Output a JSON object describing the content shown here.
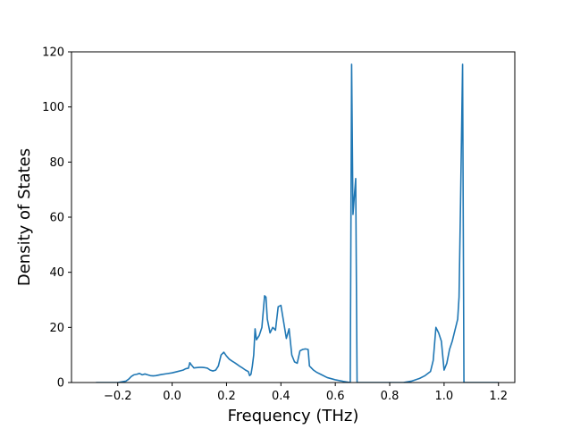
{
  "chart_data": {
    "type": "line",
    "title": "",
    "xlabel": "Frequency (THz)",
    "ylabel": "Density of States",
    "xlim": [
      -0.37,
      1.26
    ],
    "ylim": [
      0,
      120
    ],
    "xticks": [
      -0.2,
      0.0,
      0.2,
      0.4,
      0.6,
      0.8,
      1.0,
      1.2
    ],
    "xtick_labels": [
      "−0.2",
      "0.0",
      "0.2",
      "0.4",
      "0.6",
      "0.8",
      "1.0",
      "1.2"
    ],
    "yticks": [
      0,
      20,
      40,
      60,
      80,
      100,
      120
    ],
    "ytick_labels": [
      "0",
      "20",
      "40",
      "60",
      "80",
      "100",
      "120"
    ],
    "grid": false,
    "line_color": "#1f77b4",
    "series": [
      {
        "x": [
          -0.28,
          -0.2,
          -0.17,
          -0.16,
          -0.15,
          -0.14,
          -0.13,
          -0.12,
          -0.11,
          -0.1,
          -0.09,
          -0.08,
          -0.07,
          -0.06,
          -0.05,
          -0.04,
          -0.02,
          0.0,
          0.02,
          0.04,
          0.05,
          0.06,
          0.065,
          0.07,
          0.08,
          0.09,
          0.1,
          0.11,
          0.12,
          0.13,
          0.14,
          0.15,
          0.16,
          0.17,
          0.18,
          0.19,
          0.2,
          0.21,
          0.22,
          0.23,
          0.24,
          0.25,
          0.26,
          0.27,
          0.28,
          0.285,
          0.29,
          0.295,
          0.3,
          0.305,
          0.31,
          0.32,
          0.33,
          0.34,
          0.345,
          0.35,
          0.36,
          0.37,
          0.38,
          0.39,
          0.4,
          0.41,
          0.42,
          0.43,
          0.44,
          0.45,
          0.46,
          0.47,
          0.48,
          0.49,
          0.5,
          0.505,
          0.51,
          0.52,
          0.53,
          0.55,
          0.57,
          0.6,
          0.63,
          0.655,
          0.66,
          0.665,
          0.675,
          0.68,
          0.69,
          0.7,
          0.75,
          0.8,
          0.85,
          0.88,
          0.91,
          0.93,
          0.95,
          0.96,
          0.97,
          0.98,
          0.99,
          1.0,
          1.01,
          1.02,
          1.03,
          1.04,
          1.05,
          1.055,
          1.06,
          1.068,
          1.073,
          1.08,
          1.1,
          1.15,
          1.2
        ],
        "y": [
          0,
          0,
          0.5,
          1.2,
          2.2,
          2.8,
          3.0,
          3.3,
          2.8,
          3.1,
          2.8,
          2.5,
          2.4,
          2.5,
          2.7,
          2.9,
          3.2,
          3.5,
          4.0,
          4.5,
          5.0,
          5.2,
          7.2,
          6.5,
          5.3,
          5.4,
          5.5,
          5.5,
          5.4,
          5.2,
          4.5,
          4.2,
          4.5,
          6.0,
          10.0,
          11.0,
          9.6,
          8.5,
          7.8,
          7.2,
          6.5,
          5.8,
          5.2,
          4.5,
          4.0,
          2.5,
          3.0,
          6.0,
          10.0,
          19.5,
          15.5,
          17.0,
          20.0,
          31.5,
          31.0,
          23.0,
          18.0,
          20.0,
          19.0,
          27.5,
          28.0,
          22.0,
          16.0,
          19.5,
          10.0,
          7.5,
          7.0,
          11.5,
          12.0,
          12.2,
          12.0,
          6.0,
          5.5,
          4.5,
          3.8,
          2.8,
          1.8,
          1.0,
          0.4,
          0.0,
          115.5,
          61.0,
          74.0,
          0.0,
          0.0,
          0.0,
          0.0,
          0.0,
          0.0,
          0.5,
          1.5,
          2.5,
          4.0,
          8.0,
          20.0,
          18.0,
          15.0,
          4.5,
          7.0,
          12.0,
          15.0,
          19.0,
          23.0,
          31.0,
          62.0,
          115.5,
          0.0,
          0.0,
          0.0,
          0.0,
          0.0
        ]
      }
    ]
  }
}
